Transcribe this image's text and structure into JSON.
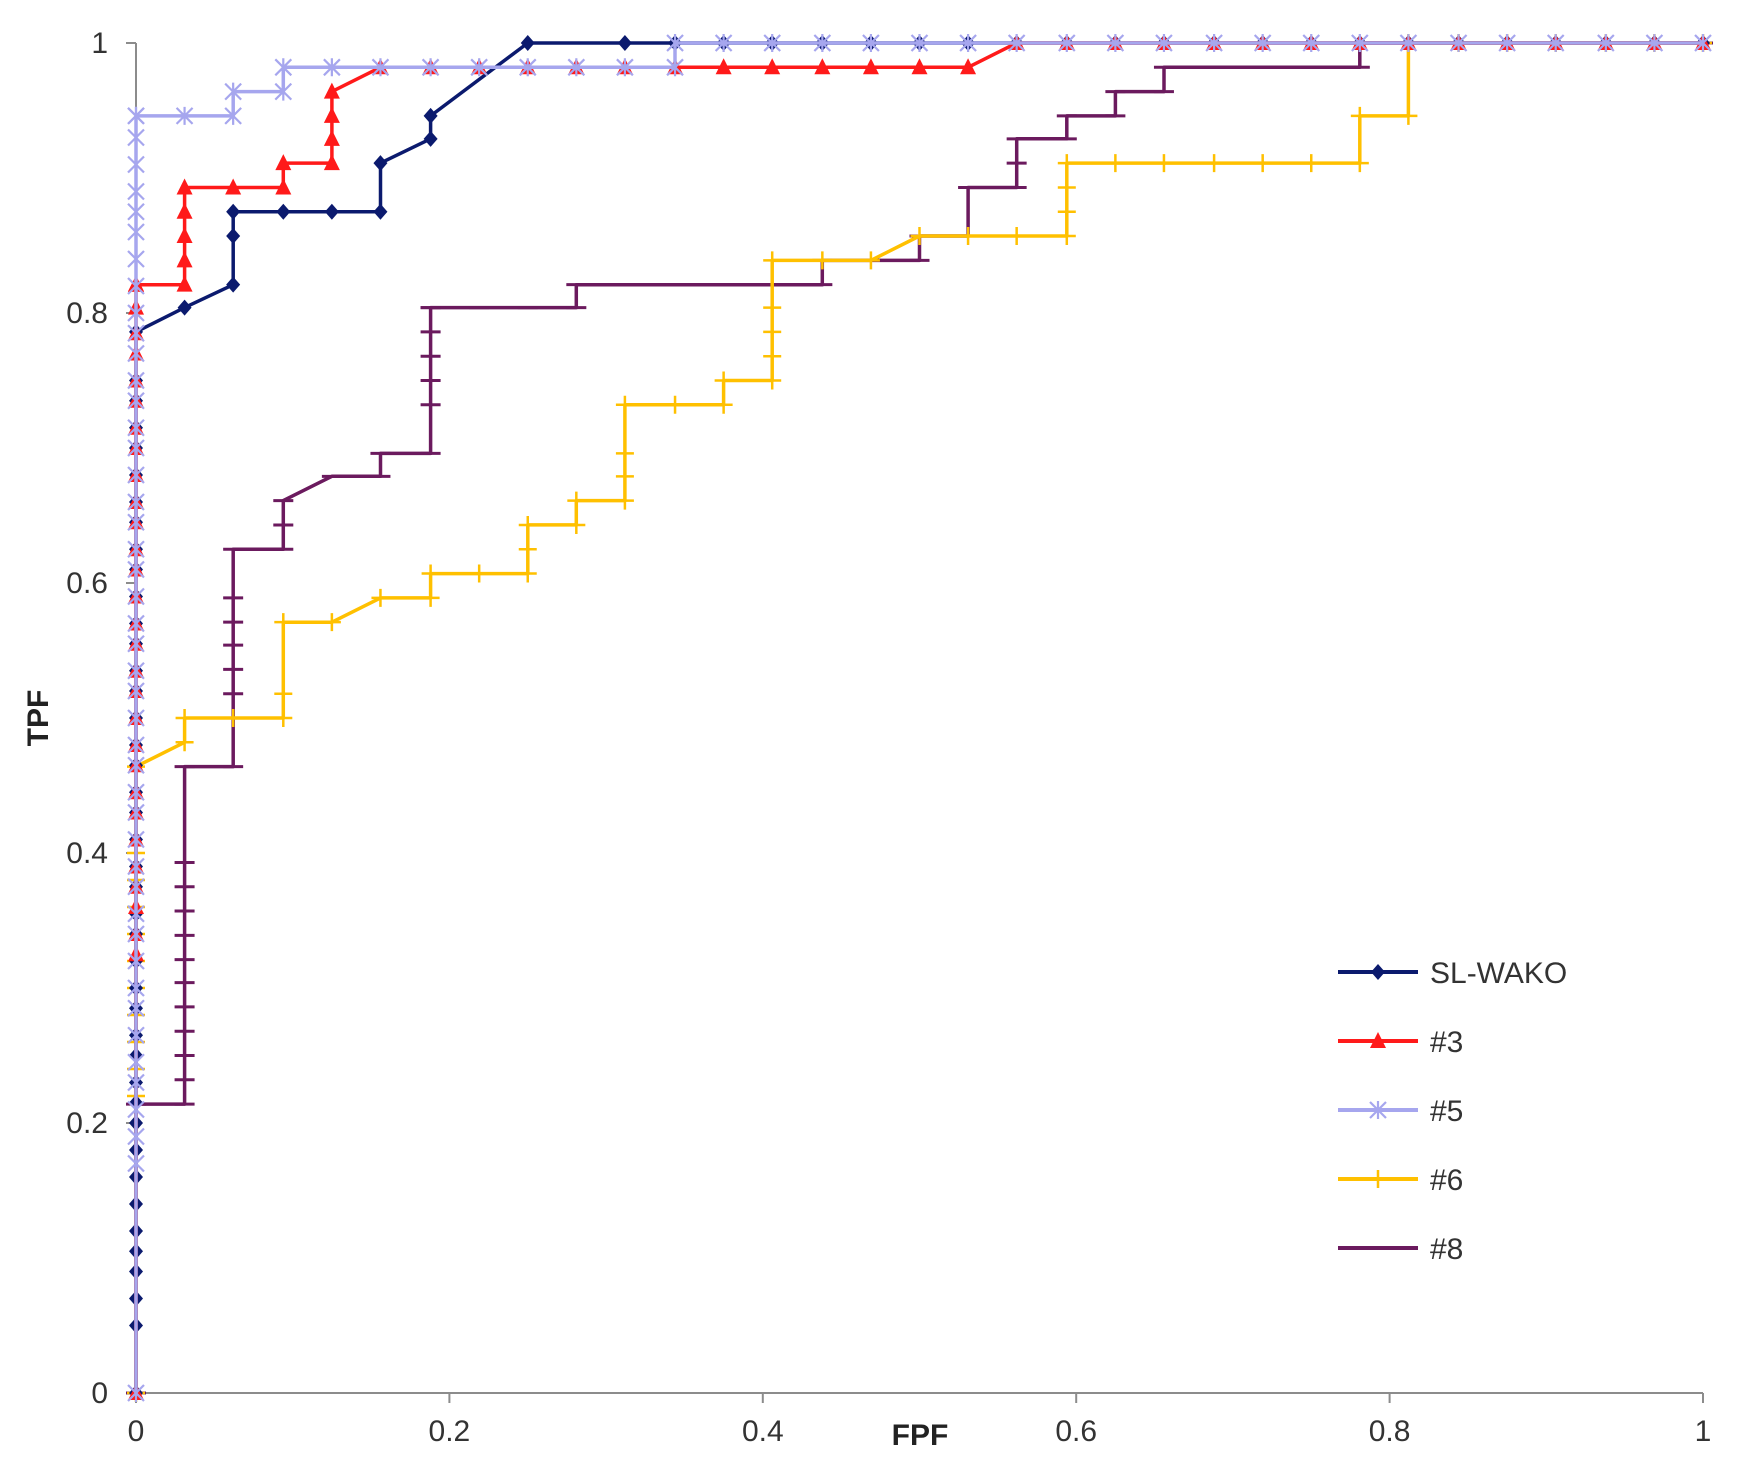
{
  "chart_data": {
    "type": "line",
    "title": "",
    "xlabel": "FPF",
    "ylabel": "TPF",
    "xlim": [
      0,
      1
    ],
    "ylim": [
      0,
      1
    ],
    "x_ticks": [
      "0",
      "0.2",
      "0.4",
      "0.6",
      "0.8",
      "1"
    ],
    "y_ticks": [
      "0",
      "0.2",
      "0.4",
      "0.6",
      "0.8",
      "1"
    ],
    "grid": false,
    "legend_position": "bottom-right",
    "series": [
      {
        "name": "SL-WAKO",
        "color": "#0b1a6e",
        "marker": "diamond",
        "x": [
          0,
          0,
          0,
          0,
          0,
          0,
          0,
          0,
          0,
          0,
          0,
          0,
          0,
          0,
          0,
          0,
          0,
          0,
          0,
          0,
          0,
          0,
          0,
          0,
          0,
          0,
          0,
          0,
          0,
          0,
          0,
          0,
          0,
          0,
          0,
          0,
          0,
          0,
          0,
          0,
          0,
          0,
          0.031,
          0.062,
          0.062,
          0.062,
          0.094,
          0.125,
          0.156,
          0.156,
          0.188,
          0.188,
          0.25,
          0.312,
          0.344,
          0.375,
          0.406,
          0.438,
          0.469,
          0.5,
          0.531,
          0.562,
          0.594,
          0.625,
          0.656,
          0.688,
          0.719,
          0.75,
          0.781,
          0.812,
          0.844,
          0.875,
          0.906,
          0.938,
          0.969,
          1
        ],
        "y": [
          0,
          0.05,
          0.07,
          0.09,
          0.105,
          0.12,
          0.14,
          0.16,
          0.18,
          0.2,
          0.215,
          0.23,
          0.25,
          0.265,
          0.285,
          0.3,
          0.32,
          0.34,
          0.355,
          0.375,
          0.39,
          0.41,
          0.43,
          0.445,
          0.465,
          0.48,
          0.5,
          0.52,
          0.535,
          0.555,
          0.57,
          0.59,
          0.61,
          0.625,
          0.645,
          0.66,
          0.68,
          0.7,
          0.715,
          0.735,
          0.75,
          0.786,
          0.804,
          0.821,
          0.857,
          0.875,
          0.875,
          0.875,
          0.875,
          0.911,
          0.929,
          0.946,
          1,
          1,
          1,
          1,
          1,
          1,
          1,
          1,
          1,
          1,
          1,
          1,
          1,
          1,
          1,
          1,
          1,
          1,
          1,
          1,
          1,
          1,
          1,
          1
        ]
      },
      {
        "name": "#3",
        "color": "#ff1a1a",
        "marker": "triangle",
        "x": [
          0,
          0,
          0,
          0,
          0,
          0,
          0,
          0,
          0,
          0,
          0,
          0,
          0,
          0,
          0,
          0,
          0,
          0,
          0,
          0,
          0,
          0,
          0,
          0,
          0,
          0,
          0,
          0,
          0,
          0,
          0,
          0,
          0,
          0.031,
          0.031,
          0.031,
          0.031,
          0.031,
          0.062,
          0.094,
          0.094,
          0.125,
          0.125,
          0.125,
          0.125,
          0.156,
          0.188,
          0.219,
          0.25,
          0.281,
          0.312,
          0.344,
          0.375,
          0.406,
          0.438,
          0.469,
          0.5,
          0.531,
          0.562,
          0.594,
          0.625,
          0.656,
          0.688,
          0.719,
          0.75,
          0.781,
          0.812,
          0.844,
          0.875,
          0.906,
          0.938,
          0.969,
          1
        ],
        "y": [
          0,
          0.325,
          0.34,
          0.36,
          0.375,
          0.39,
          0.41,
          0.43,
          0.445,
          0.465,
          0.48,
          0.5,
          0.52,
          0.535,
          0.555,
          0.57,
          0.59,
          0.61,
          0.625,
          0.645,
          0.66,
          0.68,
          0.7,
          0.715,
          0.735,
          0.75,
          0.77,
          0.785,
          0.804,
          0.821,
          0.821,
          0.821,
          0.821,
          0.821,
          0.839,
          0.857,
          0.875,
          0.893,
          0.893,
          0.893,
          0.911,
          0.911,
          0.929,
          0.946,
          0.964,
          0.982,
          0.982,
          0.982,
          0.982,
          0.982,
          0.982,
          0.982,
          0.982,
          0.982,
          0.982,
          0.982,
          0.982,
          0.982,
          1,
          1,
          1,
          1,
          1,
          1,
          1,
          1,
          1,
          1,
          1,
          1,
          1,
          1,
          1
        ]
      },
      {
        "name": "#5",
        "color": "#a6a6ee",
        "marker": "star",
        "x": [
          0,
          0,
          0,
          0,
          0,
          0,
          0,
          0,
          0,
          0,
          0,
          0,
          0,
          0,
          0,
          0,
          0,
          0,
          0,
          0,
          0,
          0,
          0,
          0,
          0,
          0,
          0,
          0,
          0,
          0,
          0,
          0,
          0,
          0,
          0,
          0,
          0,
          0,
          0,
          0,
          0,
          0,
          0,
          0,
          0,
          0,
          0.031,
          0.062,
          0.062,
          0.094,
          0.094,
          0.125,
          0.156,
          0.188,
          0.219,
          0.25,
          0.281,
          0.312,
          0.344,
          0.344,
          0.375,
          0.406,
          0.438,
          0.469,
          0.5,
          0.531,
          0.562,
          0.594,
          0.625,
          0.656,
          0.688,
          0.719,
          0.75,
          0.781,
          0.812,
          0.844,
          0.875,
          0.906,
          0.938,
          0.969,
          1
        ],
        "y": [
          0,
          0.17,
          0.19,
          0.21,
          0.23,
          0.245,
          0.265,
          0.285,
          0.3,
          0.32,
          0.34,
          0.355,
          0.375,
          0.39,
          0.41,
          0.43,
          0.445,
          0.465,
          0.48,
          0.5,
          0.52,
          0.535,
          0.555,
          0.57,
          0.59,
          0.61,
          0.625,
          0.645,
          0.66,
          0.68,
          0.7,
          0.715,
          0.735,
          0.75,
          0.77,
          0.785,
          0.8,
          0.82,
          0.84,
          0.86,
          0.875,
          0.89,
          0.91,
          0.93,
          0.946,
          0.946,
          0.946,
          0.946,
          0.964,
          0.964,
          0.982,
          0.982,
          0.982,
          0.982,
          0.982,
          0.982,
          0.982,
          0.982,
          0.982,
          1,
          1,
          1,
          1,
          1,
          1,
          1,
          1,
          1,
          1,
          1,
          1,
          1,
          1,
          1,
          1,
          1,
          1,
          1,
          1,
          1,
          1
        ]
      },
      {
        "name": "#6",
        "color": "#ffc000",
        "marker": "plus",
        "x": [
          0,
          0,
          0,
          0,
          0,
          0,
          0,
          0,
          0,
          0,
          0,
          0,
          0.031,
          0.031,
          0.062,
          0.094,
          0.094,
          0.094,
          0.125,
          0.156,
          0.188,
          0.188,
          0.219,
          0.25,
          0.25,
          0.25,
          0.281,
          0.281,
          0.312,
          0.312,
          0.312,
          0.312,
          0.344,
          0.375,
          0.375,
          0.406,
          0.406,
          0.406,
          0.406,
          0.406,
          0.438,
          0.469,
          0.5,
          0.531,
          0.562,
          0.594,
          0.594,
          0.594,
          0.594,
          0.625,
          0.656,
          0.688,
          0.719,
          0.75,
          0.781,
          0.781,
          0.812,
          0.812,
          0.844,
          0.875,
          0.906,
          0.938,
          0.969,
          1
        ],
        "y": [
          0,
          0.22,
          0.24,
          0.26,
          0.28,
          0.3,
          0.32,
          0.34,
          0.36,
          0.38,
          0.4,
          0.464,
          0.482,
          0.5,
          0.5,
          0.5,
          0.518,
          0.571,
          0.571,
          0.589,
          0.589,
          0.607,
          0.607,
          0.607,
          0.625,
          0.643,
          0.643,
          0.661,
          0.661,
          0.679,
          0.696,
          0.732,
          0.732,
          0.732,
          0.75,
          0.75,
          0.768,
          0.786,
          0.804,
          0.839,
          0.839,
          0.839,
          0.857,
          0.857,
          0.857,
          0.857,
          0.875,
          0.893,
          0.911,
          0.911,
          0.911,
          0.911,
          0.911,
          0.911,
          0.911,
          0.946,
          0.946,
          1,
          1,
          1,
          1,
          1,
          1,
          1
        ]
      },
      {
        "name": "#8",
        "color": "#6b1a5e",
        "marker": "dash",
        "x": [
          0,
          0,
          0.031,
          0.031,
          0.031,
          0.031,
          0.031,
          0.031,
          0.031,
          0.031,
          0.031,
          0.031,
          0.031,
          0.031,
          0.062,
          0.062,
          0.062,
          0.062,
          0.062,
          0.062,
          0.062,
          0.062,
          0.094,
          0.094,
          0.094,
          0.125,
          0.156,
          0.156,
          0.188,
          0.188,
          0.188,
          0.188,
          0.188,
          0.188,
          0.188,
          0.219,
          0.25,
          0.281,
          0.281,
          0.312,
          0.344,
          0.375,
          0.406,
          0.438,
          0.438,
          0.469,
          0.5,
          0.5,
          0.531,
          0.531,
          0.562,
          0.562,
          0.562,
          0.594,
          0.594,
          0.625,
          0.625,
          0.656,
          0.656,
          0.688,
          0.719,
          0.75,
          0.781,
          0.781,
          0.812,
          0.844,
          0.875,
          0.906,
          0.938,
          0.969,
          1
        ],
        "y": [
          0,
          0.214,
          0.214,
          0.232,
          0.25,
          0.268,
          0.286,
          0.304,
          0.321,
          0.339,
          0.357,
          0.375,
          0.393,
          0.464,
          0.464,
          0.5,
          0.518,
          0.536,
          0.554,
          0.571,
          0.589,
          0.625,
          0.625,
          0.643,
          0.661,
          0.679,
          0.679,
          0.696,
          0.696,
          0.732,
          0.75,
          0.768,
          0.786,
          0.804,
          0.804,
          0.804,
          0.804,
          0.804,
          0.821,
          0.821,
          0.821,
          0.821,
          0.821,
          0.821,
          0.839,
          0.839,
          0.839,
          0.857,
          0.857,
          0.893,
          0.893,
          0.911,
          0.929,
          0.929,
          0.946,
          0.946,
          0.964,
          0.964,
          0.982,
          0.982,
          0.982,
          0.982,
          0.982,
          1,
          1,
          1,
          1,
          1,
          1,
          1,
          1
        ]
      }
    ]
  }
}
